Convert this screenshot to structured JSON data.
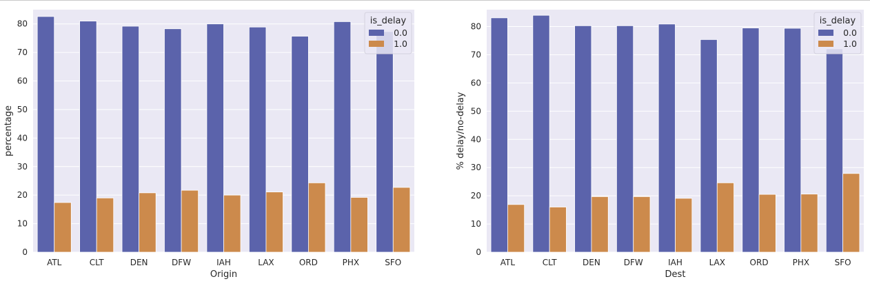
{
  "chart_data": [
    {
      "type": "bar",
      "categories": [
        "ATL",
        "CLT",
        "DEN",
        "DFW",
        "IAH",
        "LAX",
        "ORD",
        "PHX",
        "SFO"
      ],
      "series": [
        {
          "name": "0.0",
          "values": [
            82.6,
            81.0,
            79.2,
            78.3,
            80.0,
            78.9,
            75.7,
            80.8,
            77.3
          ]
        },
        {
          "name": "1.0",
          "values": [
            17.4,
            19.0,
            20.8,
            21.7,
            20.0,
            21.1,
            24.3,
            19.2,
            22.7
          ]
        }
      ],
      "title": "",
      "xlabel": "Origin",
      "ylabel": "percentage",
      "ylim": [
        0,
        85
      ],
      "yticks": [
        0,
        10,
        20,
        30,
        40,
        50,
        60,
        70,
        80
      ],
      "legend": {
        "title": "is_delay",
        "placement": "top-right"
      },
      "colors": [
        "#5b63ab",
        "#cc8a4c"
      ],
      "background": "#eae8f4",
      "grid": true
    },
    {
      "type": "bar",
      "categories": [
        "ATL",
        "CLT",
        "DEN",
        "DFW",
        "IAH",
        "LAX",
        "ORD",
        "PHX",
        "SFO"
      ],
      "series": [
        {
          "name": "0.0",
          "values": [
            83.1,
            84.0,
            80.3,
            80.3,
            80.9,
            75.4,
            79.5,
            79.4,
            72.1
          ]
        },
        {
          "name": "1.0",
          "values": [
            16.9,
            16.0,
            19.7,
            19.7,
            19.1,
            24.6,
            20.5,
            20.6,
            27.9
          ]
        }
      ],
      "title": "",
      "xlabel": "Dest",
      "ylabel": "% delay/no-delay",
      "ylim": [
        0,
        86
      ],
      "yticks": [
        0,
        10,
        20,
        30,
        40,
        50,
        60,
        70,
        80
      ],
      "legend": {
        "title": "is_delay",
        "placement": "top-right"
      },
      "colors": [
        "#5b63ab",
        "#cc8a4c"
      ],
      "background": "#eae8f4",
      "grid": true
    }
  ]
}
